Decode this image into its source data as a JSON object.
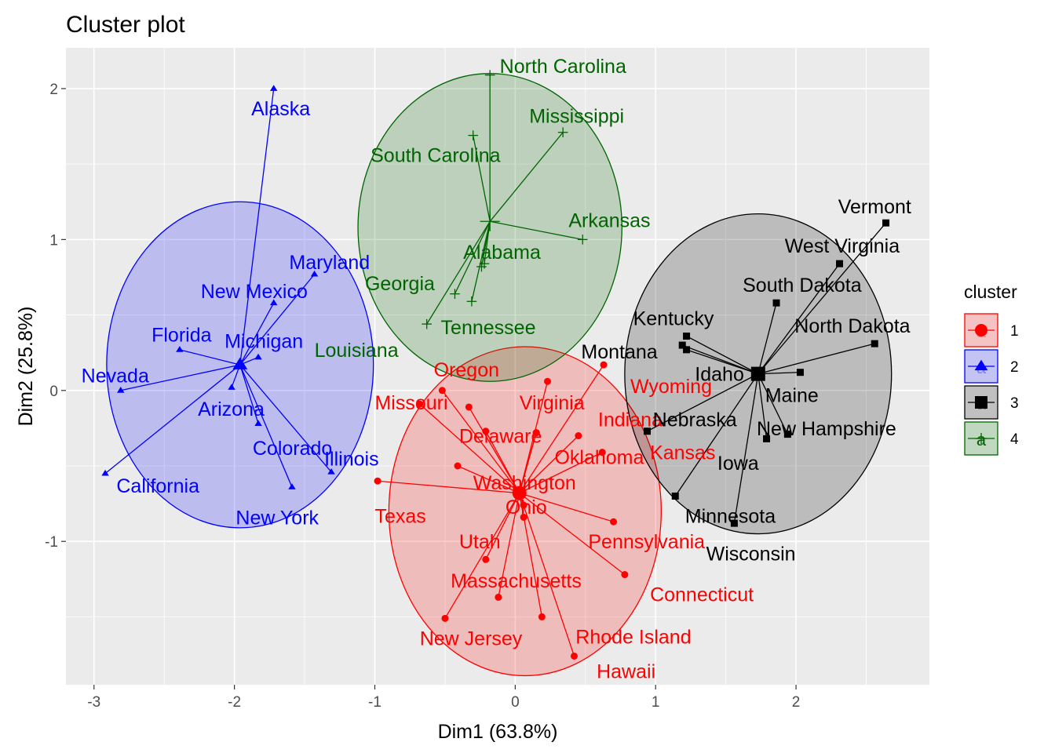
{
  "chart_data": {
    "type": "scatter",
    "title": "Cluster plot",
    "xlabel": "Dim1 (63.8%)",
    "ylabel": "Dim2 (25.8%)",
    "xlim": [
      -3.2,
      2.95
    ],
    "ylim": [
      -1.95,
      2.27
    ],
    "x_ticks": [
      -3,
      -2,
      -1,
      0,
      1,
      2
    ],
    "y_ticks": [
      -1,
      0,
      1,
      2
    ],
    "grid": true,
    "legend": {
      "title": "cluster",
      "placement": "right",
      "entries": [
        {
          "label": "1",
          "color": "#ff0000",
          "fill": "#f4c4c4",
          "shape": "circle",
          "glyph": "a"
        },
        {
          "label": "2",
          "color": "#0000ff",
          "fill": "#c4c4f4",
          "shape": "triangle",
          "glyph": "a"
        },
        {
          "label": "3",
          "color": "#000000",
          "fill": "#c0c0c0",
          "shape": "square",
          "glyph": "a"
        },
        {
          "label": "4",
          "color": "#006400",
          "fill": "#c0d8c0",
          "shape": "plus",
          "glyph": "a"
        }
      ]
    },
    "clusters": [
      {
        "id": "1",
        "color": "#ff0000",
        "fill": "#ff0000",
        "shape": "circle",
        "center": [
          0.03,
          -0.68
        ],
        "ellipse": {
          "cx": 0.07,
          "cy": -0.8,
          "rx": 0.97,
          "ry": 1.09
        },
        "points": [
          {
            "name": "Oregon",
            "x": -0.52,
            "y": 0.0,
            "lx": -0.58,
            "ly": 0.14
          },
          {
            "name": "Missouri",
            "x": -0.68,
            "y": -0.09,
            "lx": -1.0,
            "ly": -0.08
          },
          {
            "name": "Virginia",
            "x": -0.33,
            "y": -0.11,
            "lx": 0.03,
            "ly": -0.08
          },
          {
            "name": "Wyoming",
            "x": 0.63,
            "y": 0.17,
            "lx": 0.82,
            "ly": 0.03
          },
          {
            "name": "Indiana",
            "x": 0.45,
            "y": -0.3,
            "lx": 0.59,
            "ly": -0.19
          },
          {
            "name": "Delaware",
            "x": -0.21,
            "y": -0.27,
            "lx": -0.4,
            "ly": -0.3
          },
          {
            "name": "Oklahoma",
            "x": 0.15,
            "y": -0.28,
            "lx": 0.28,
            "ly": -0.44
          },
          {
            "name": "Kansas",
            "x": 0.62,
            "y": -0.41,
            "lx": 0.96,
            "ly": -0.41
          },
          {
            "name": "Washington",
            "x": -0.41,
            "y": -0.5,
            "lx": -0.3,
            "ly": -0.61
          },
          {
            "name": "Texas",
            "x": -0.98,
            "y": -0.6,
            "lx": -1.0,
            "ly": -0.83
          },
          {
            "name": "Ohio",
            "x": 0.06,
            "y": -0.76,
            "lx": -0.07,
            "ly": -0.77
          },
          {
            "name": "Pennsylvania",
            "x": 0.7,
            "y": -0.87,
            "lx": 0.52,
            "ly": -1.0
          },
          {
            "name": "Utah",
            "x": -0.21,
            "y": -1.12,
            "lx": -0.4,
            "ly": -1.0
          },
          {
            "name": "Massachusetts",
            "x": -0.12,
            "y": -1.37,
            "lx": -0.46,
            "ly": -1.26
          },
          {
            "name": "Connecticut",
            "x": 0.78,
            "y": -1.22,
            "lx": 0.96,
            "ly": -1.35
          },
          {
            "name": "New Jersey",
            "x": -0.5,
            "y": -1.51,
            "lx": -0.68,
            "ly": -1.64
          },
          {
            "name": "Rhode Island",
            "x": 0.19,
            "y": -1.5,
            "lx": 0.43,
            "ly": -1.63
          },
          {
            "name": "Hawaii",
            "x": 0.42,
            "y": -1.76,
            "lx": 0.58,
            "ly": -1.86
          },
          {
            "name": "",
            "x": 0.23,
            "y": 0.06
          },
          {
            "name": "",
            "x": 0.15,
            "y": -0.28
          },
          {
            "name": "",
            "x": 0.06,
            "y": -0.84
          }
        ]
      },
      {
        "id": "2",
        "color": "#0000ff",
        "fill": "#0000ff",
        "shape": "triangle",
        "center": [
          -1.96,
          0.17
        ],
        "ellipse": {
          "cx": -1.96,
          "cy": 0.17,
          "rx": 0.95,
          "ry": 1.08
        },
        "points": [
          {
            "name": "Alaska",
            "x": -1.72,
            "y": 2.0,
            "lx": -1.88,
            "ly": 1.87
          },
          {
            "name": "Maryland",
            "x": -1.43,
            "y": 0.77,
            "lx": -1.61,
            "ly": 0.85
          },
          {
            "name": "New Mexico",
            "x": -1.72,
            "y": 0.58,
            "lx": -2.24,
            "ly": 0.66
          },
          {
            "name": "Florida",
            "x": -2.39,
            "y": 0.27,
            "lx": -2.59,
            "ly": 0.37
          },
          {
            "name": "Michigan",
            "x": -1.83,
            "y": 0.22,
            "lx": -2.07,
            "ly": 0.33
          },
          {
            "name": "Nevada",
            "x": -2.81,
            "y": 0.0,
            "lx": -3.09,
            "ly": 0.1
          },
          {
            "name": "Arizona",
            "x": -2.02,
            "y": 0.02,
            "lx": -2.26,
            "ly": -0.12
          },
          {
            "name": "Colorado",
            "x": -1.83,
            "y": -0.22,
            "lx": -1.87,
            "ly": -0.38
          },
          {
            "name": "Illinois",
            "x": -1.31,
            "y": -0.54,
            "lx": -1.36,
            "ly": -0.45
          },
          {
            "name": "California",
            "x": -2.92,
            "y": -0.55,
            "lx": -2.84,
            "ly": -0.63
          },
          {
            "name": "New York",
            "x": -1.59,
            "y": -0.64,
            "lx": -1.99,
            "ly": -0.84
          }
        ]
      },
      {
        "id": "3",
        "color": "#000000",
        "fill": "#000000",
        "shape": "square",
        "center": [
          1.73,
          0.11
        ],
        "ellipse": {
          "cx": 1.73,
          "cy": 0.11,
          "rx": 0.95,
          "ry": 1.06
        },
        "points": [
          {
            "name": "Vermont",
            "x": 2.64,
            "y": 1.11,
            "lx": 2.3,
            "ly": 1.22
          },
          {
            "name": "West Virginia",
            "x": 2.31,
            "y": 0.84,
            "lx": 1.92,
            "ly": 0.96
          },
          {
            "name": "South Dakota",
            "x": 1.86,
            "y": 0.58,
            "lx": 1.62,
            "ly": 0.7
          },
          {
            "name": "North Dakota",
            "x": 2.56,
            "y": 0.31,
            "lx": 1.99,
            "ly": 0.43
          },
          {
            "name": "Kentucky",
            "x": 1.22,
            "y": 0.36,
            "lx": 0.84,
            "ly": 0.48
          },
          {
            "name": "Montana",
            "x": 1.19,
            "y": 0.3,
            "lx": 0.47,
            "ly": 0.26
          },
          {
            "name": "Idaho",
            "x": 1.22,
            "y": 0.27,
            "lx": 1.28,
            "ly": 0.11
          },
          {
            "name": "Maine",
            "x": 2.03,
            "y": 0.12,
            "lx": 1.78,
            "ly": -0.03
          },
          {
            "name": "Nebraska",
            "x": 0.94,
            "y": -0.27,
            "lx": 0.98,
            "ly": -0.19
          },
          {
            "name": "New Hampshire",
            "x": 1.94,
            "y": -0.29,
            "lx": 1.72,
            "ly": -0.25
          },
          {
            "name": "Iowa",
            "x": 1.79,
            "y": -0.32,
            "lx": 1.44,
            "ly": -0.48
          },
          {
            "name": "Minnesota",
            "x": 1.14,
            "y": -0.7,
            "lx": 1.21,
            "ly": -0.83
          },
          {
            "name": "Wisconsin",
            "x": 1.56,
            "y": -0.88,
            "lx": 1.36,
            "ly": -1.08
          }
        ]
      },
      {
        "id": "4",
        "color": "#006400",
        "fill": "#006400",
        "shape": "plus",
        "center": [
          -0.18,
          1.12
        ],
        "ellipse": {
          "cx": -0.18,
          "cy": 1.08,
          "rx": 0.94,
          "ry": 1.02
        },
        "points": [
          {
            "name": "North Carolina",
            "x": -0.18,
            "y": 2.09,
            "lx": -0.11,
            "ly": 2.15
          },
          {
            "name": "Mississippi",
            "x": 0.34,
            "y": 1.71,
            "lx": 0.1,
            "ly": 1.82
          },
          {
            "name": "South Carolina",
            "x": -0.3,
            "y": 1.69,
            "lx": -1.03,
            "ly": 1.56
          },
          {
            "name": "Arkansas",
            "x": 0.48,
            "y": 1.0,
            "lx": 0.38,
            "ly": 1.13
          },
          {
            "name": "Alabama",
            "x": -0.22,
            "y": 0.84,
            "lx": -0.37,
            "ly": 0.92
          },
          {
            "name": "Georgia",
            "x": -0.43,
            "y": 0.64,
            "lx": -1.07,
            "ly": 0.71
          },
          {
            "name": "Tennessee",
            "x": -0.31,
            "y": 0.59,
            "lx": -0.53,
            "ly": 0.42
          },
          {
            "name": "Louisiana",
            "x": -0.63,
            "y": 0.44,
            "lx": -1.43,
            "ly": 0.27
          },
          {
            "name": "",
            "x": -0.24,
            "y": 0.82
          }
        ]
      }
    ]
  }
}
